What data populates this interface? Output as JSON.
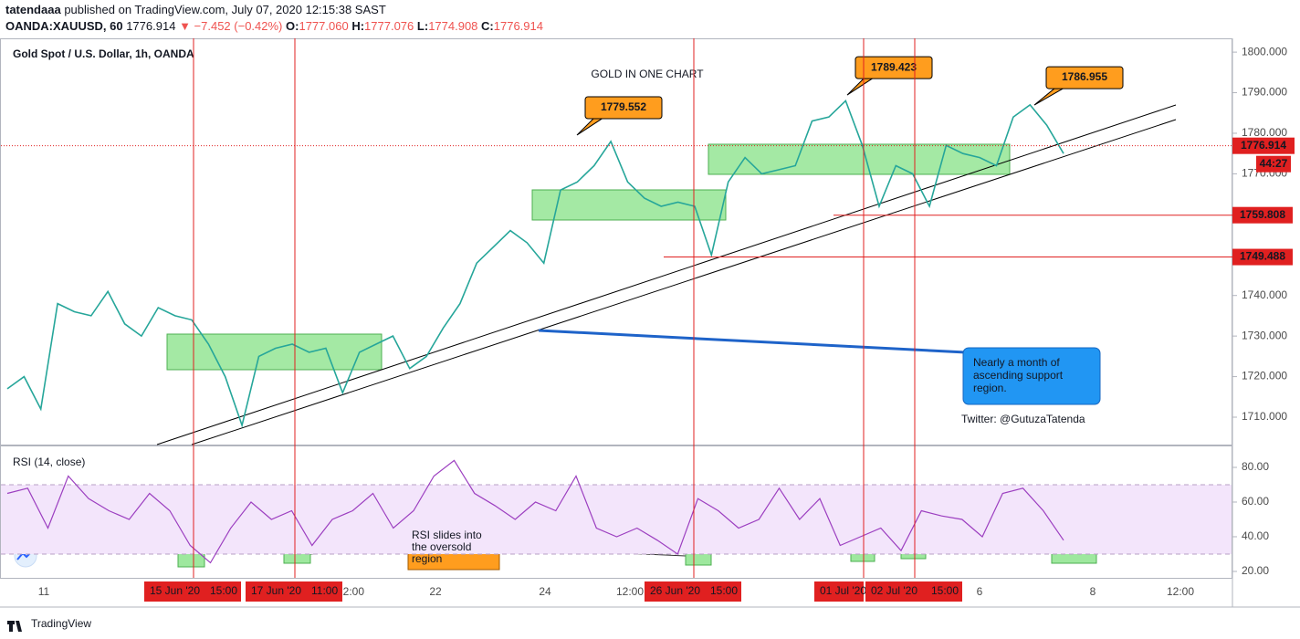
{
  "header": {
    "publisher": "tatendaaa",
    "published_text": "published on TradingView.com, July 07, 2020 12:15:38 SAST",
    "symbol": "OANDA:XAUUSD, 60",
    "last": "1776.914",
    "change": "▼ −7.452 (−0.42%)",
    "o_label": "O:",
    "o": "1777.060",
    "h_label": "H:",
    "h": "1777.076",
    "l_label": "L:",
    "l": "1774.908",
    "c_label": "C:",
    "c": "1776.914"
  },
  "chart_data": [
    {
      "type": "line",
      "pane": "price",
      "title": "GOLD IN ONE CHART",
      "subtitle": "Gold Spot / U.S. Dollar, 1h, OANDA",
      "color": "#26a69a",
      "values": [
        1717,
        1720,
        1712,
        1738,
        1736,
        1735,
        1741,
        1733,
        1730,
        1737,
        1735,
        1734,
        1728,
        1720,
        1708,
        1725,
        1727,
        1728,
        1726,
        1727,
        1716,
        1726,
        1728,
        1730,
        1722,
        1725,
        1732,
        1738,
        1748,
        1752,
        1756,
        1753,
        1748,
        1766,
        1768,
        1772,
        1778,
        1768,
        1764,
        1762,
        1763,
        1762,
        1750,
        1768,
        1774,
        1770,
        1771,
        1772,
        1783,
        1784,
        1788,
        1777,
        1762,
        1772,
        1770,
        1762,
        1777,
        1775,
        1774,
        1772,
        1784,
        1787,
        1782,
        1775
      ],
      "ylim": [
        1703.25,
        1803.4
      ],
      "yticks": [
        {
          "value": 1710,
          "label": "1710.000"
        },
        {
          "value": 1720,
          "label": "1720.000"
        },
        {
          "value": 1730,
          "label": "1730.000"
        },
        {
          "value": 1740,
          "label": "1740.000"
        },
        {
          "value": 1750,
          "label": "1750.000"
        },
        {
          "value": 1760,
          "label": "1760.000"
        },
        {
          "value": 1770,
          "label": "1770.000"
        },
        {
          "value": 1780,
          "label": "1780.000"
        },
        {
          "value": 1790,
          "label": "1790.000"
        },
        {
          "value": 1800,
          "label": "1800.000"
        }
      ],
      "peaks": [
        1779.552,
        1789.423,
        1786.955
      ],
      "levels": [
        1759.808,
        1749.488
      ],
      "current_price": 1776.914,
      "countdown": "44:27",
      "note": [
        "Nearly a month of",
        "ascending support",
        "region."
      ],
      "twitter": "Twitter: @GutuzaTatenda"
    },
    {
      "type": "line",
      "pane": "rsi",
      "title": "RSI (14, close)",
      "color": "#9c3fc0",
      "values": [
        65,
        68,
        45,
        75,
        62,
        55,
        50,
        65,
        55,
        35,
        25,
        45,
        60,
        50,
        55,
        35,
        50,
        55,
        65,
        45,
        55,
        75,
        84,
        65,
        58,
        50,
        60,
        55,
        75,
        45,
        40,
        45,
        38,
        30,
        62,
        55,
        45,
        50,
        68,
        50,
        62,
        35,
        40,
        45,
        32,
        55,
        52,
        50,
        40,
        65,
        68,
        55,
        38
      ],
      "ylim": [
        16.3,
        92.1
      ],
      "yticks": [
        {
          "value": 20,
          "label": "20.00"
        },
        {
          "value": 40,
          "label": "40.00"
        },
        {
          "value": 60,
          "label": "60.00"
        },
        {
          "value": 80,
          "label": "80.00"
        }
      ],
      "band": [
        30,
        70
      ],
      "note": [
        "RSI slides into",
        "the oversold",
        "region"
      ]
    }
  ],
  "time_axis": [
    "11",
    "12:00",
    "22",
    "24",
    "12:00",
    "6",
    "8",
    "12:00"
  ],
  "markers": [
    {
      "date": "15 Jun '20",
      "time": "15:00"
    },
    {
      "date": "17 Jun '20",
      "time": "11:00"
    },
    {
      "date": "26 Jun '20",
      "time": "15:00"
    },
    {
      "date": "01 Jul '20",
      "time": ""
    },
    {
      "date": "02 Jul '20",
      "time": "15:00"
    }
  ],
  "footer": {
    "brand": "TradingView"
  }
}
